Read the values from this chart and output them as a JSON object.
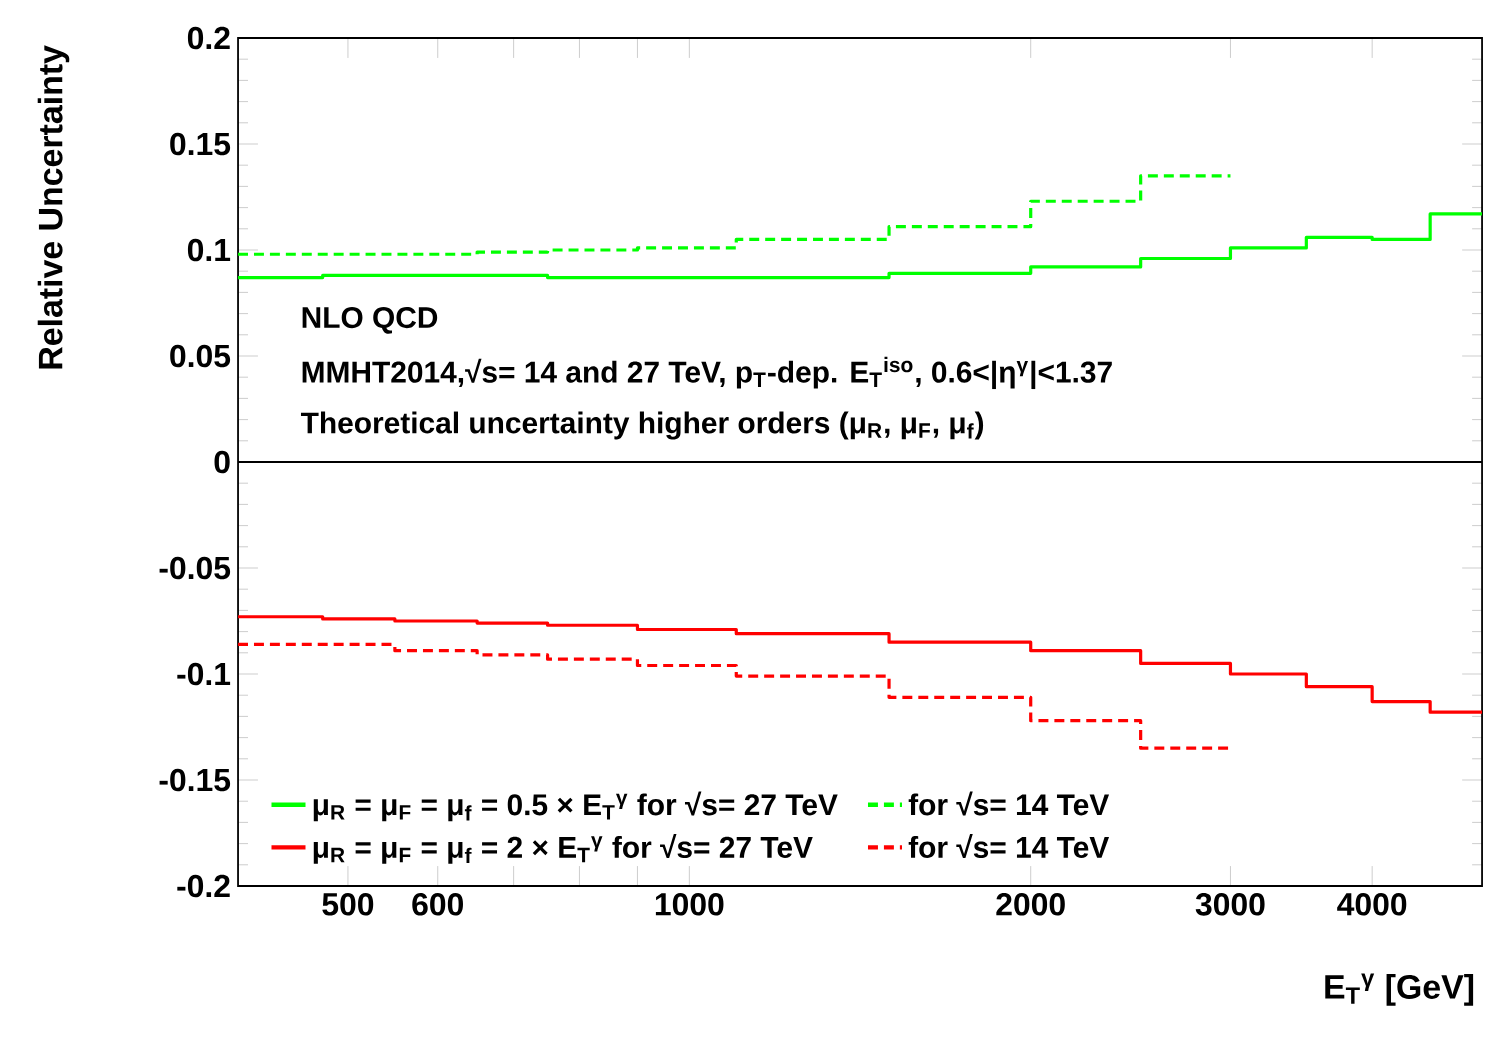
{
  "chart_data": {
    "type": "histogram",
    "xlabel": "E$_{T}$$^{γ}$ [GeV]",
    "ylabel": "Relative Uncertainty",
    "bins": [
      400,
      475,
      550,
      650,
      750,
      900,
      1100,
      1500,
      2000,
      2500,
      3000,
      3500,
      4000,
      4500,
      5000
    ],
    "series": [
      {
        "name": "μ$_{R}$ = μ$_{F}$ = μ$_{f}$ = 0.5 × E$_{T}$$^{γ}$ for √s= 27 TeV",
        "color": "#00ff00",
        "line_style": "solid",
        "values": [
          0.087,
          0.088,
          0.088,
          0.088,
          0.087,
          0.087,
          0.087,
          0.089,
          0.092,
          0.096,
          0.101,
          0.106,
          0.105,
          0.117
        ]
      },
      {
        "name": "for √s= 14 TeV",
        "color": "#00ff00",
        "line_style": "dashed",
        "bins": [
          400,
          475,
          550,
          650,
          750,
          900,
          1100,
          1500,
          2000,
          2500,
          3000
        ],
        "values": [
          0.098,
          0.098,
          0.098,
          0.099,
          0.1,
          0.101,
          0.105,
          0.111,
          0.123,
          0.135
        ]
      },
      {
        "name": "μ$_{R}$ = μ$_{F}$ = μ$_{f}$ = 2 × E$_{T}$$^{γ}$ for √s= 27 TeV",
        "color": "#ff0000",
        "line_style": "solid",
        "values": [
          -0.073,
          -0.074,
          -0.075,
          -0.076,
          -0.077,
          -0.079,
          -0.081,
          -0.085,
          -0.089,
          -0.095,
          -0.1,
          -0.106,
          -0.113,
          -0.118
        ]
      },
      {
        "name": "for √s= 14 TeV",
        "color": "#ff0000",
        "line_style": "dashed",
        "bins": [
          400,
          475,
          550,
          650,
          750,
          900,
          1100,
          1500,
          2000,
          2500,
          3000
        ],
        "values": [
          -0.086,
          -0.086,
          -0.089,
          -0.091,
          -0.093,
          -0.096,
          -0.101,
          -0.111,
          -0.122,
          -0.135
        ]
      }
    ],
    "xlim": [
      400,
      5000
    ],
    "ylim": [
      -0.2,
      0.2
    ],
    "log": "x",
    "xticks": [
      500,
      600,
      {
        "value": 700,
        "label": null
      },
      {
        "value": 800,
        "label": null
      },
      {
        "value": 900,
        "label": null
      },
      1000,
      2000,
      3000,
      4000
    ],
    "yticks": [
      -0.2,
      -0.15,
      -0.1,
      -0.05,
      0,
      0.05,
      0.1,
      0.15,
      0.2
    ],
    "ref_lines": [
      {
        "axis": "y",
        "value": 0,
        "color": "#000000"
      }
    ],
    "annotations": [
      "NLO QCD",
      "MMHT2014,√s= 14 and 27 TeV, p$_{T}$-dep. E$_{T}$$^{iso}$, 0.6<|η$^{γ}$|<1.37",
      "Theoretical uncertainty higher orders (μ$_{R}$, μ$_{F}$, μ$_{f}$)"
    ],
    "legend": "bottom"
  }
}
